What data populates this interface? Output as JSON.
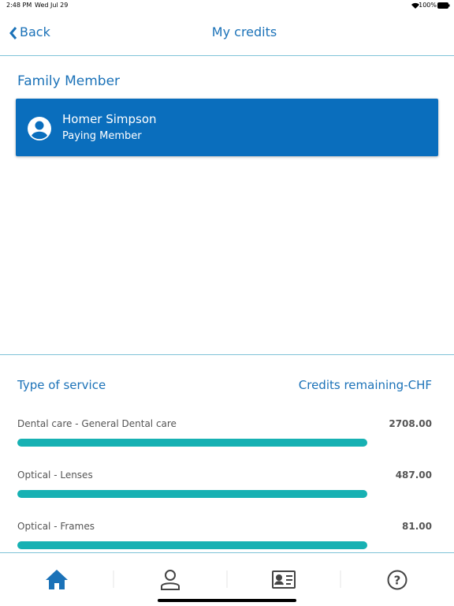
{
  "status_bar": {
    "time": "2:48 PM",
    "date": "Wed Jul 29",
    "battery": "100%"
  },
  "header": {
    "back": "Back",
    "title": "My credits"
  },
  "family": {
    "heading": "Family Member",
    "name": "Homer Simpson",
    "role": "Paying Member"
  },
  "table": {
    "columns": [
      "Type of service",
      "Credits remaining-CHF"
    ],
    "rows": [
      [
        "Dental care - General Dental care",
        "2708.00"
      ],
      [
        "Optical - Lenses",
        "487.00"
      ],
      [
        "Optical - Frames",
        "81.00"
      ]
    ]
  }
}
